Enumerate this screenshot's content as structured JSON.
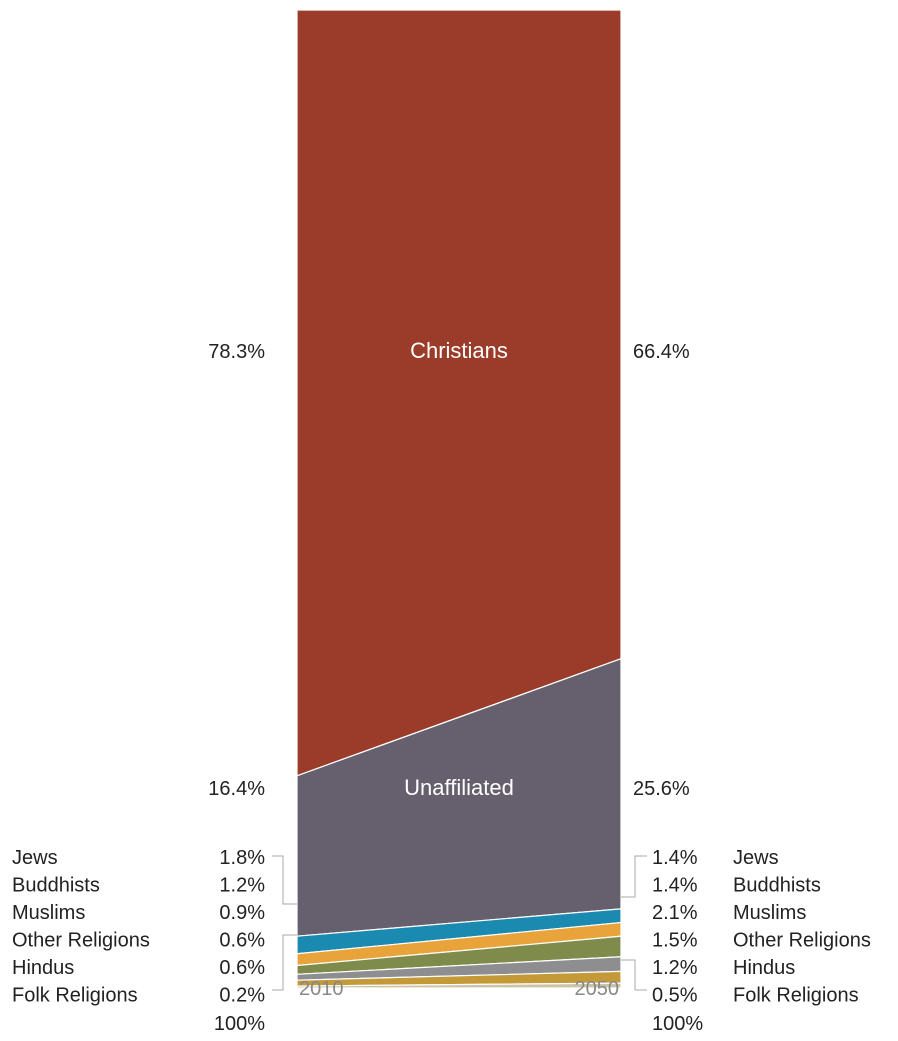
{
  "chart_data": {
    "type": "area",
    "x": [
      "2010",
      "2050"
    ],
    "stack_order": [
      "Folk Religions",
      "Hindus",
      "Other Religions",
      "Muslims",
      "Buddhists",
      "Jews",
      "Unaffiliated",
      "Christians"
    ],
    "series": [
      {
        "name": "Christians",
        "values": [
          78.3,
          66.4
        ],
        "labels": [
          "78.3%",
          "66.4%"
        ],
        "color": "#9b3b2a"
      },
      {
        "name": "Unaffiliated",
        "values": [
          16.4,
          25.6
        ],
        "labels": [
          "16.4%",
          "25.6%"
        ],
        "color": "#66606e"
      },
      {
        "name": "Jews",
        "values": [
          1.8,
          1.4
        ],
        "labels": [
          "1.8%",
          "1.4%"
        ],
        "color": "#1a8ab0"
      },
      {
        "name": "Buddhists",
        "values": [
          1.2,
          1.4
        ],
        "labels": [
          "1.2%",
          "1.4%"
        ],
        "color": "#e8a33a"
      },
      {
        "name": "Muslims",
        "values": [
          0.9,
          2.1
        ],
        "labels": [
          "0.9%",
          "2.1%"
        ],
        "color": "#7f8b4a"
      },
      {
        "name": "Other Religions",
        "values": [
          0.6,
          1.5
        ],
        "labels": [
          "0.6%",
          "1.5%"
        ],
        "color": "#8e8e90"
      },
      {
        "name": "Hindus",
        "values": [
          0.6,
          1.2
        ],
        "labels": [
          "0.6%",
          "1.2%"
        ],
        "color": "#c49a38"
      },
      {
        "name": "Folk Religions",
        "values": [
          0.2,
          0.5
        ],
        "labels": [
          "0.2%",
          "0.5%"
        ],
        "color": "#cbc3a8"
      }
    ],
    "left_labels": [
      "Jews",
      "Buddhists",
      "Muslims",
      "Other Religions",
      "Hindus",
      "Folk Religions"
    ],
    "right_labels": [
      "Jews",
      "Buddhists",
      "Muslims",
      "Other Religions",
      "Hindus",
      "Folk Religions"
    ],
    "inner_labels": [
      "Christians",
      "Unaffiliated"
    ],
    "total_labels": [
      "100%",
      "100%"
    ],
    "xlim": [
      "2010",
      "2050"
    ],
    "ylim": [
      0,
      100
    ]
  }
}
